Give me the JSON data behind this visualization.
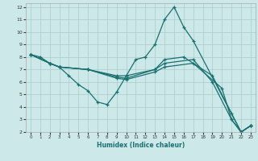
{
  "xlabel": "Humidex (Indice chaleur)",
  "xlim": [
    -0.5,
    23.5
  ],
  "ylim": [
    2,
    12.3
  ],
  "yticks": [
    2,
    3,
    4,
    5,
    6,
    7,
    8,
    9,
    10,
    11,
    12
  ],
  "xticks": [
    0,
    1,
    2,
    3,
    4,
    5,
    6,
    7,
    8,
    9,
    10,
    11,
    12,
    13,
    14,
    15,
    16,
    17,
    18,
    19,
    20,
    21,
    22,
    23
  ],
  "bg_color": "#cce8e8",
  "grid_color": "#aacccc",
  "line_color": "#1a7070",
  "lines": [
    {
      "x": [
        0,
        1,
        2,
        3,
        4,
        5,
        6,
        7,
        8,
        9,
        10,
        11,
        12,
        13,
        14,
        15,
        16,
        17,
        22,
        23
      ],
      "y": [
        8.2,
        8.0,
        7.5,
        7.2,
        6.5,
        5.8,
        5.3,
        4.4,
        4.2,
        5.2,
        6.5,
        7.8,
        8.0,
        9.0,
        11.0,
        12.0,
        10.4,
        9.3,
        2.0,
        2.5
      ]
    },
    {
      "x": [
        0,
        2,
        3,
        6,
        9,
        10,
        13,
        14,
        16,
        19,
        21,
        22,
        23
      ],
      "y": [
        8.2,
        7.5,
        7.2,
        7.0,
        6.5,
        6.5,
        7.0,
        7.8,
        8.0,
        6.5,
        3.5,
        2.0,
        2.5
      ]
    },
    {
      "x": [
        0,
        2,
        3,
        6,
        9,
        10,
        13,
        14,
        17,
        19,
        21,
        22,
        23
      ],
      "y": [
        8.2,
        7.5,
        7.2,
        7.0,
        6.4,
        6.3,
        7.0,
        7.5,
        7.8,
        6.0,
        3.0,
        2.0,
        2.5
      ]
    },
    {
      "x": [
        0,
        2,
        3,
        6,
        9,
        10,
        13,
        14,
        17,
        20,
        21,
        22,
        23
      ],
      "y": [
        8.2,
        7.5,
        7.2,
        7.0,
        6.3,
        6.2,
        6.8,
        7.2,
        7.5,
        5.5,
        3.0,
        2.0,
        2.5
      ]
    }
  ]
}
